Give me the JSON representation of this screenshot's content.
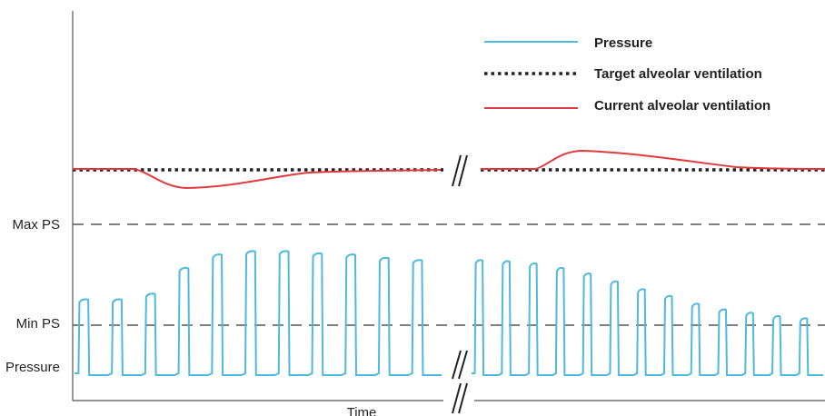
{
  "chart_data": {
    "type": "line",
    "xlabel": "Time",
    "y_labels": {
      "max_ps": "Max PS",
      "min_ps": "Min PS",
      "pressure": "Pressure"
    },
    "legend": [
      {
        "label": "Pressure",
        "color": "#4db8e0",
        "style": "solid"
      },
      {
        "label": "Target alveolar ventilation",
        "color": "#222222",
        "style": "dotted"
      },
      {
        "label": "Current alveolar ventilation",
        "color": "#e03a3e",
        "style": "solid"
      }
    ],
    "axis_break": true,
    "pressure_series": {
      "name": "Pressure",
      "segment_1_peak_levels": [
        0.57,
        0.57,
        0.62,
        0.85,
        0.97,
        1.0,
        1.0,
        0.98,
        0.97,
        0.94,
        0.92
      ],
      "segment_2_peak_levels": [
        0.92,
        0.91,
        0.89,
        0.85,
        0.8,
        0.73,
        0.66,
        0.6,
        0.53,
        0.48,
        0.45,
        0.42,
        0.4
      ]
    },
    "ventilation_series": {
      "name": "Current alveolar ventilation",
      "segment_1": "dip below target then recovery to target",
      "segment_2": "rise above target then recovery to target"
    }
  }
}
